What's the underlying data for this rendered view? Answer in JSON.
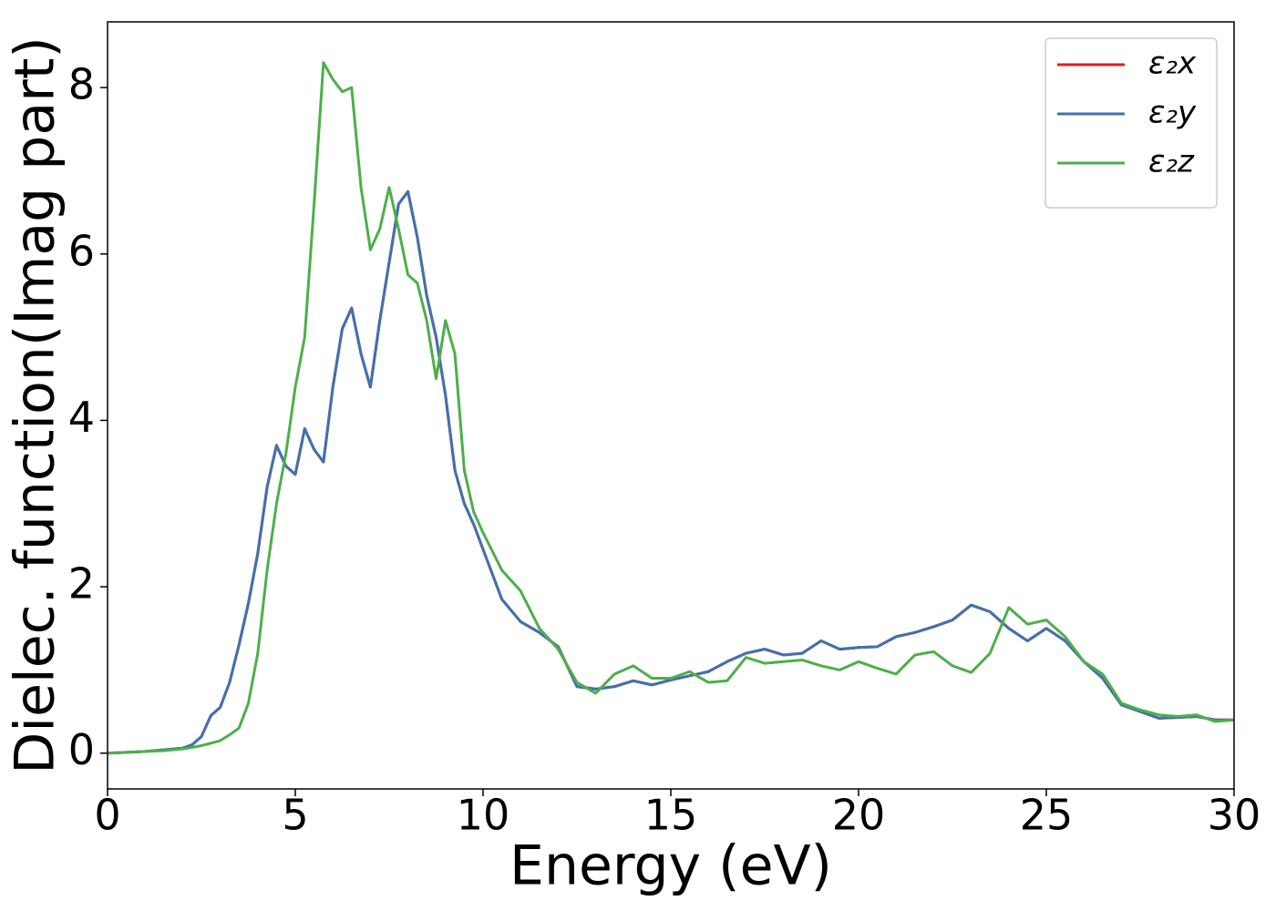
{
  "chart_data": {
    "type": "line",
    "xlabel": "Energy (eV)",
    "ylabel": "Dielec. function(Imag part)",
    "xlim": [
      0,
      30
    ],
    "ylim": [
      -0.43,
      8.79
    ],
    "xticks": [
      0,
      5,
      10,
      15,
      20,
      25,
      30
    ],
    "yticks": [
      0,
      2,
      4,
      6,
      8
    ],
    "legend": "upper right",
    "x": [
      0,
      0.5,
      1,
      1.5,
      2,
      2.25,
      2.5,
      2.75,
      3,
      3.25,
      3.5,
      3.75,
      4,
      4.25,
      4.5,
      4.75,
      5,
      5.25,
      5.5,
      5.75,
      6,
      6.25,
      6.5,
      6.75,
      7,
      7.25,
      7.5,
      7.75,
      8,
      8.25,
      8.5,
      8.75,
      9,
      9.25,
      9.5,
      9.75,
      10,
      10.5,
      11,
      11.5,
      12,
      12.5,
      13,
      13.5,
      14,
      14.5,
      15,
      15.5,
      16,
      16.5,
      17,
      17.5,
      18,
      18.5,
      19,
      19.5,
      20,
      20.5,
      21,
      21.5,
      22,
      22.5,
      23,
      23.5,
      24,
      24.5,
      25,
      25.5,
      26,
      26.5,
      27,
      27.5,
      28,
      28.5,
      29,
      29.5,
      30
    ],
    "series": [
      {
        "name": "ε₂x",
        "color": "#e41a1c",
        "values": [
          0,
          0.01,
          0.02,
          0.04,
          0.06,
          0.1,
          0.2,
          0.45,
          0.55,
          0.85,
          1.3,
          1.8,
          2.4,
          3.2,
          3.7,
          3.45,
          3.35,
          3.9,
          3.65,
          3.5,
          4.4,
          5.1,
          5.35,
          4.8,
          4.4,
          5.2,
          5.9,
          6.6,
          6.75,
          6.2,
          5.5,
          5.0,
          4.3,
          3.4,
          3.0,
          2.75,
          2.45,
          1.85,
          1.58,
          1.45,
          1.28,
          0.8,
          0.77,
          0.8,
          0.87,
          0.82,
          0.88,
          0.93,
          0.98,
          1.1,
          1.2,
          1.25,
          1.18,
          1.2,
          1.35,
          1.25,
          1.27,
          1.28,
          1.4,
          1.45,
          1.52,
          1.6,
          1.78,
          1.7,
          1.5,
          1.35,
          1.5,
          1.35,
          1.1,
          0.9,
          0.58,
          0.5,
          0.42,
          0.43,
          0.44,
          0.4,
          0.4
        ]
      },
      {
        "name": "ε₂y",
        "color": "#3f72b0",
        "values": [
          0,
          0.01,
          0.02,
          0.04,
          0.06,
          0.1,
          0.2,
          0.45,
          0.55,
          0.85,
          1.3,
          1.8,
          2.4,
          3.2,
          3.7,
          3.45,
          3.35,
          3.9,
          3.65,
          3.5,
          4.4,
          5.1,
          5.35,
          4.8,
          4.4,
          5.2,
          5.9,
          6.6,
          6.75,
          6.2,
          5.5,
          5.0,
          4.3,
          3.4,
          3.0,
          2.75,
          2.45,
          1.85,
          1.58,
          1.45,
          1.28,
          0.8,
          0.77,
          0.8,
          0.87,
          0.82,
          0.88,
          0.93,
          0.98,
          1.1,
          1.2,
          1.25,
          1.18,
          1.2,
          1.35,
          1.25,
          1.27,
          1.28,
          1.4,
          1.45,
          1.52,
          1.6,
          1.78,
          1.7,
          1.5,
          1.35,
          1.5,
          1.35,
          1.1,
          0.9,
          0.58,
          0.5,
          0.42,
          0.43,
          0.44,
          0.4,
          0.4
        ]
      },
      {
        "name": "ε₂z",
        "color": "#4daf4a",
        "values": [
          0,
          0.01,
          0.02,
          0.03,
          0.05,
          0.07,
          0.09,
          0.12,
          0.15,
          0.22,
          0.3,
          0.6,
          1.2,
          2.2,
          3.0,
          3.6,
          4.4,
          5.0,
          6.6,
          8.3,
          8.1,
          7.95,
          8.0,
          6.8,
          6.05,
          6.3,
          6.8,
          6.3,
          5.75,
          5.65,
          5.2,
          4.5,
          5.2,
          4.8,
          3.4,
          2.9,
          2.65,
          2.2,
          1.95,
          1.5,
          1.25,
          0.85,
          0.72,
          0.95,
          1.05,
          0.9,
          0.9,
          0.98,
          0.85,
          0.87,
          1.15,
          1.08,
          1.1,
          1.12,
          1.05,
          1.0,
          1.1,
          1.02,
          0.95,
          1.18,
          1.22,
          1.05,
          0.97,
          1.2,
          1.75,
          1.55,
          1.6,
          1.4,
          1.1,
          0.95,
          0.6,
          0.52,
          0.46,
          0.44,
          0.46,
          0.38,
          0.4
        ]
      }
    ]
  }
}
